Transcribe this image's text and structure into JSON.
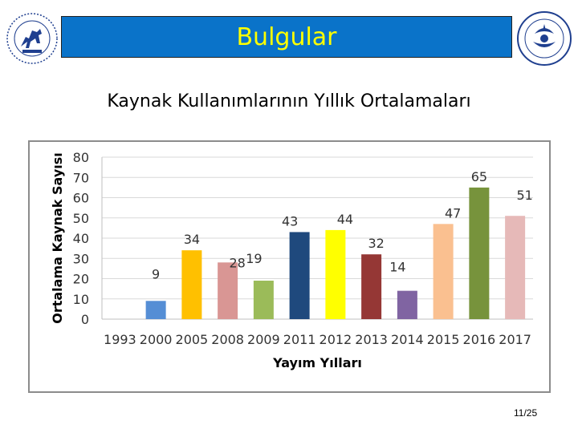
{
  "header": {
    "title": "Bulgular",
    "title_color": "#ffff00",
    "banner_color": "#0a73c9"
  },
  "icons": {
    "left_logo": "university-seal-horse-icon",
    "right_logo": "university-seal-emblem-icon"
  },
  "page_number": "11/25",
  "chart_data": {
    "type": "bar",
    "title": "Kaynak Kullanımlarının Yıllık Ortalamaları",
    "xlabel": "Yayım Yılları",
    "ylabel": "Ortalama Kaynak Sayısı",
    "categories": [
      "1993",
      "2000",
      "2005",
      "2008",
      "2009",
      "2011",
      "2012",
      "2013",
      "2014",
      "2015",
      "2016",
      "2017"
    ],
    "values": [
      null,
      9,
      34,
      28,
      19,
      43,
      44,
      32,
      14,
      47,
      65,
      51
    ],
    "data_labels": [
      "",
      "9",
      "34",
      "28",
      "19",
      "43",
      "44",
      "32",
      "14",
      "47",
      "65",
      "51"
    ],
    "colors": [
      "#4f81bd",
      "#558ed5",
      "#ffc000",
      "#d99694",
      "#9bbb59",
      "#1f497d",
      "#ffff00",
      "#953735",
      "#8064a2",
      "#fac090",
      "#77933c",
      "#e6b9b8"
    ],
    "yticks": [
      0,
      10,
      20,
      30,
      40,
      50,
      60,
      70,
      80
    ],
    "ylim": [
      0,
      80
    ],
    "grid": true,
    "legend": "none"
  }
}
